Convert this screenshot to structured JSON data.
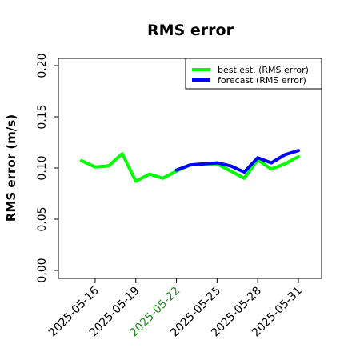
{
  "chart_data": {
    "type": "line",
    "title": "RMS error",
    "xlabel": "",
    "ylabel": "RMS error (m/s)",
    "ylim": [
      0.0,
      0.21
    ],
    "yticks": [
      "0.00",
      "0.05",
      "0.10",
      "0.15",
      "0.20"
    ],
    "xticks": [
      {
        "label": "2025-05-16",
        "color": "#000000"
      },
      {
        "label": "2025-05-19",
        "color": "#000000"
      },
      {
        "label": "2025-05-22",
        "color": "#228B22"
      },
      {
        "label": "2025-05-25",
        "color": "#000000"
      },
      {
        "label": "2025-05-28",
        "color": "#000000"
      },
      {
        "label": "2025-05-31",
        "color": "#000000"
      }
    ],
    "x_start": "2025-05-15",
    "legend_position": "top-right",
    "grid": false,
    "series": [
      {
        "name": "best est. (RMS error)",
        "color": "#00ff00",
        "x": [
          "2025-05-15",
          "2025-05-16",
          "2025-05-17",
          "2025-05-18",
          "2025-05-19",
          "2025-05-20",
          "2025-05-21",
          "2025-05-22",
          "2025-05-23",
          "2025-05-24",
          "2025-05-25",
          "2025-05-26",
          "2025-05-27",
          "2025-05-28",
          "2025-05-29",
          "2025-05-30",
          "2025-05-31"
        ],
        "values": [
          0.107,
          0.101,
          0.102,
          0.114,
          0.087,
          0.094,
          0.09,
          0.097,
          0.103,
          0.104,
          0.104,
          0.097,
          0.09,
          0.108,
          0.099,
          0.104,
          0.111
        ]
      },
      {
        "name": "forecast (RMS error)",
        "color": "#0000ff",
        "x": [
          "2025-05-22",
          "2025-05-23",
          "2025-05-24",
          "2025-05-25",
          "2025-05-26",
          "2025-05-27",
          "2025-05-28",
          "2025-05-29",
          "2025-05-30",
          "2025-05-31"
        ],
        "values": [
          0.098,
          0.103,
          0.104,
          0.105,
          0.102,
          0.096,
          0.11,
          0.105,
          0.113,
          0.117
        ]
      }
    ]
  }
}
